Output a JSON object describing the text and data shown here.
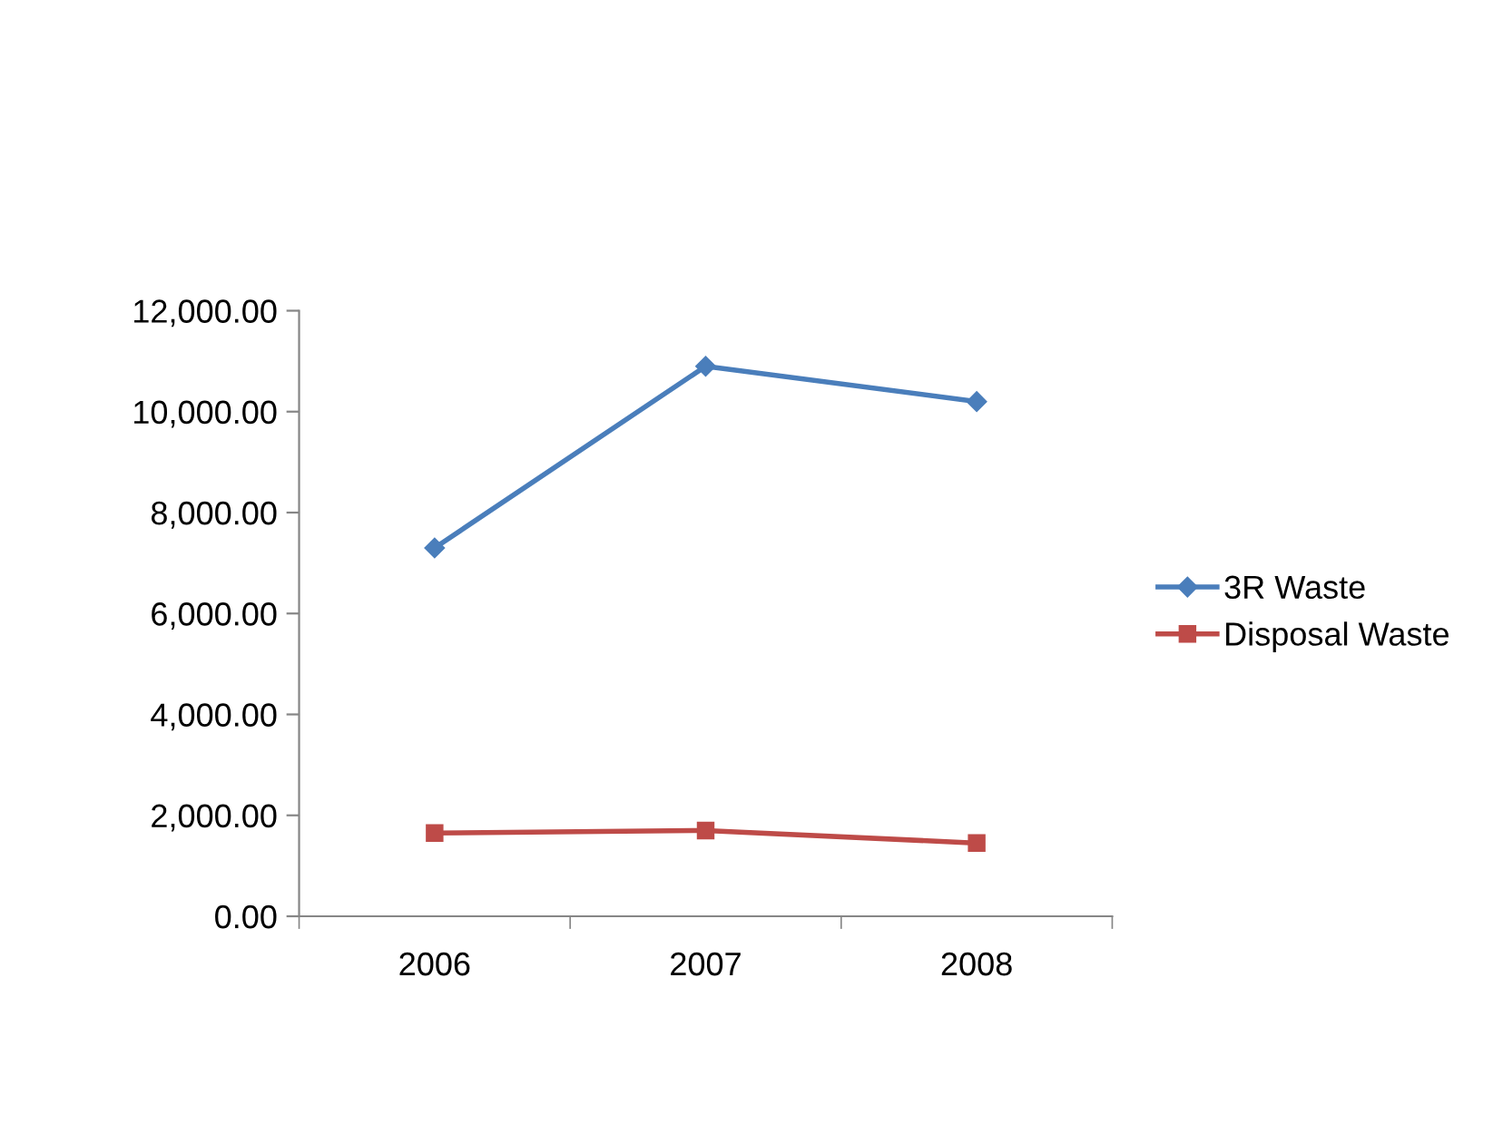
{
  "chart_data": {
    "type": "line",
    "categories": [
      "2006",
      "2007",
      "2008"
    ],
    "series": [
      {
        "name": "3R Waste",
        "color": "#4a7ebb",
        "marker": "diamond",
        "values": [
          7300,
          10900,
          10200
        ]
      },
      {
        "name": "Disposal Waste",
        "color": "#be4b48",
        "marker": "square",
        "values": [
          1650,
          1700,
          1450
        ]
      }
    ],
    "ylim": [
      0,
      12000
    ],
    "yticks": [
      {
        "value": 0,
        "label": "0.00"
      },
      {
        "value": 2000,
        "label": "2,000.00"
      },
      {
        "value": 4000,
        "label": "4,000.00"
      },
      {
        "value": 6000,
        "label": "6,000.00"
      },
      {
        "value": 8000,
        "label": "8,000.00"
      },
      {
        "value": 10000,
        "label": "10,000.00"
      },
      {
        "value": 12000,
        "label": "12,000.00"
      }
    ],
    "grid": false,
    "legend": "right",
    "line_style": "solid"
  }
}
